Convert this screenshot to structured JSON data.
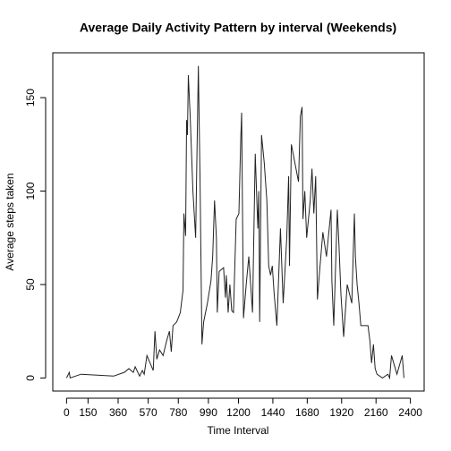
{
  "chart_data": {
    "type": "line",
    "title": "Average Daily Activity Pattern by interval (Weekends)",
    "xlabel": "Time Interval",
    "ylabel": "Average steps taken",
    "x": [
      0,
      19,
      25,
      101,
      328,
      403,
      435,
      466,
      479,
      510,
      529,
      542,
      561,
      605,
      617,
      630,
      649,
      674,
      699,
      718,
      731,
      743,
      769,
      794,
      813,
      819,
      831,
      838,
      844,
      850,
      863,
      882,
      901,
      920,
      932,
      945,
      957,
      983,
      1008,
      1020,
      1033,
      1046,
      1052,
      1065,
      1096,
      1109,
      1115,
      1128,
      1140,
      1153,
      1165,
      1184,
      1203,
      1216,
      1222,
      1235,
      1254,
      1272,
      1298,
      1317,
      1335,
      1342,
      1348,
      1361,
      1380,
      1398,
      1411,
      1424,
      1436,
      1449,
      1468,
      1493,
      1512,
      1537,
      1550,
      1556,
      1569,
      1594,
      1619,
      1632,
      1644,
      1650,
      1663,
      1676,
      1701,
      1713,
      1726,
      1739,
      1751,
      1764,
      1789,
      1814,
      1846,
      1852,
      1865,
      1890,
      1902,
      1915,
      1934,
      1959,
      1991,
      2009,
      2016,
      2028,
      2041,
      2054,
      2104,
      2117,
      2129,
      2142,
      2154,
      2167,
      2205,
      2243,
      2255,
      2268,
      2306,
      2343,
      2355
    ],
    "series": [
      {
        "name": "Weekends",
        "color": "#222222",
        "values": [
          0,
          3,
          0,
          2,
          1,
          3,
          5,
          3,
          6,
          1,
          4,
          2,
          12,
          4,
          25,
          10,
          15,
          12,
          20,
          25,
          14,
          28,
          30,
          35,
          47,
          88,
          76,
          138,
          130,
          162,
          140,
          100,
          75,
          167,
          105,
          18,
          30,
          40,
          52,
          65,
          95,
          75,
          35,
          57,
          59,
          43,
          55,
          35,
          50,
          36,
          35,
          85,
          88,
          128,
          142,
          32,
          50,
          65,
          35,
          120,
          80,
          100,
          30,
          130,
          115,
          95,
          60,
          55,
          60,
          45,
          28,
          80,
          40,
          75,
          108,
          60,
          125,
          115,
          105,
          140,
          145,
          85,
          100,
          75,
          95,
          112,
          88,
          108,
          42,
          55,
          78,
          65,
          90,
          52,
          28,
          90,
          70,
          45,
          22,
          50,
          40,
          88,
          65,
          50,
          40,
          28,
          28,
          20,
          8,
          18,
          5,
          2,
          0,
          2,
          0,
          12,
          2,
          12,
          0
        ]
      }
    ],
    "xlim": [
      -96,
      2496
    ],
    "ylim": [
      -7,
      174
    ],
    "xticks": [
      0,
      150,
      360,
      570,
      780,
      990,
      1200,
      1440,
      1680,
      1920,
      2160,
      2400
    ],
    "yticks": [
      0,
      50,
      100,
      150
    ]
  }
}
